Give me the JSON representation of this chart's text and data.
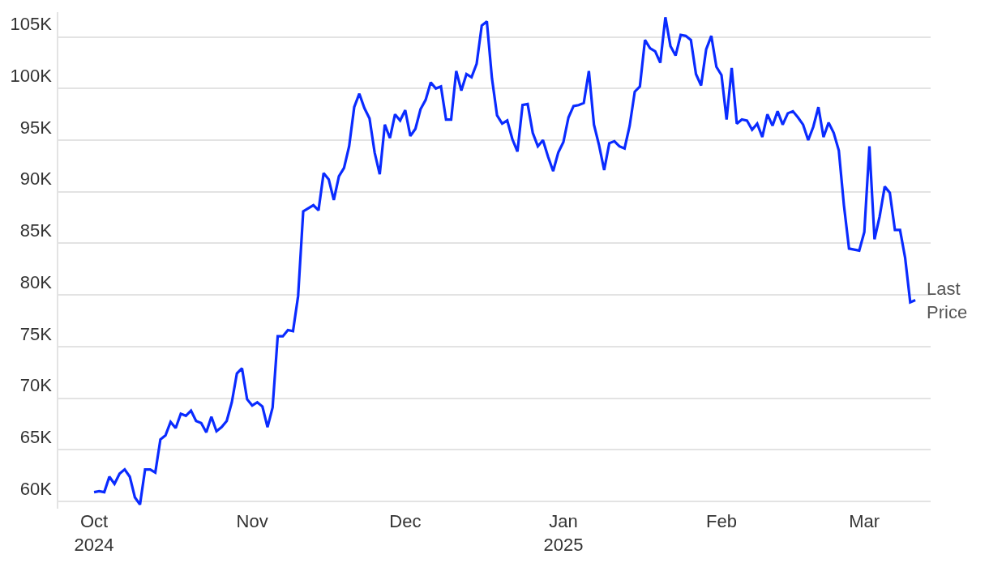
{
  "chart_data": {
    "type": "line",
    "x": [
      "2024-10-01",
      "2024-10-02",
      "2024-10-03",
      "2024-10-04",
      "2024-10-05",
      "2024-10-06",
      "2024-10-07",
      "2024-10-08",
      "2024-10-09",
      "2024-10-10",
      "2024-10-11",
      "2024-10-12",
      "2024-10-13",
      "2024-10-14",
      "2024-10-15",
      "2024-10-16",
      "2024-10-17",
      "2024-10-18",
      "2024-10-19",
      "2024-10-20",
      "2024-10-21",
      "2024-10-22",
      "2024-10-23",
      "2024-10-24",
      "2024-10-25",
      "2024-10-26",
      "2024-10-27",
      "2024-10-28",
      "2024-10-29",
      "2024-10-30",
      "2024-10-31",
      "2024-11-01",
      "2024-11-02",
      "2024-11-03",
      "2024-11-04",
      "2024-11-05",
      "2024-11-06",
      "2024-11-07",
      "2024-11-08",
      "2024-11-09",
      "2024-11-10",
      "2024-11-11",
      "2024-11-12",
      "2024-11-13",
      "2024-11-14",
      "2024-11-15",
      "2024-11-16",
      "2024-11-17",
      "2024-11-18",
      "2024-11-19",
      "2024-11-20",
      "2024-11-21",
      "2024-11-22",
      "2024-11-23",
      "2024-11-24",
      "2024-11-25",
      "2024-11-26",
      "2024-11-27",
      "2024-11-28",
      "2024-11-29",
      "2024-11-30",
      "2024-12-01",
      "2024-12-02",
      "2024-12-03",
      "2024-12-04",
      "2024-12-05",
      "2024-12-06",
      "2024-12-07",
      "2024-12-08",
      "2024-12-09",
      "2024-12-10",
      "2024-12-11",
      "2024-12-12",
      "2024-12-13",
      "2024-12-14",
      "2024-12-15",
      "2024-12-16",
      "2024-12-17",
      "2024-12-18",
      "2024-12-19",
      "2024-12-20",
      "2024-12-21",
      "2024-12-22",
      "2024-12-23",
      "2024-12-24",
      "2024-12-25",
      "2024-12-26",
      "2024-12-27",
      "2024-12-28",
      "2024-12-29",
      "2024-12-30",
      "2024-12-31",
      "2025-01-01",
      "2025-01-02",
      "2025-01-03",
      "2025-01-04",
      "2025-01-05",
      "2025-01-06",
      "2025-01-07",
      "2025-01-08",
      "2025-01-09",
      "2025-01-10",
      "2025-01-11",
      "2025-01-12",
      "2025-01-13",
      "2025-01-14",
      "2025-01-15",
      "2025-01-16",
      "2025-01-17",
      "2025-01-18",
      "2025-01-19",
      "2025-01-20",
      "2025-01-21",
      "2025-01-22",
      "2025-01-23",
      "2025-01-24",
      "2025-01-25",
      "2025-01-26",
      "2025-01-27",
      "2025-01-28",
      "2025-01-29",
      "2025-01-30",
      "2025-01-31",
      "2025-02-01",
      "2025-02-02",
      "2025-02-03",
      "2025-02-04",
      "2025-02-05",
      "2025-02-06",
      "2025-02-07",
      "2025-02-08",
      "2025-02-09",
      "2025-02-10",
      "2025-02-11",
      "2025-02-12",
      "2025-02-13",
      "2025-02-14",
      "2025-02-15",
      "2025-02-16",
      "2025-02-17",
      "2025-02-18",
      "2025-02-19",
      "2025-02-20",
      "2025-02-21",
      "2025-02-22",
      "2025-02-23",
      "2025-02-24",
      "2025-02-25",
      "2025-02-26",
      "2025-02-27",
      "2025-02-28",
      "2025-03-01",
      "2025-03-02",
      "2025-03-03",
      "2025-03-04",
      "2025-03-05",
      "2025-03-06",
      "2025-03-07",
      "2025-03-08",
      "2025-03-09",
      "2025-03-10",
      "2025-03-11"
    ],
    "series": [
      {
        "color": "#0a2bff",
        "values": [
          60900,
          61000,
          60900,
          62400,
          61700,
          62700,
          63100,
          62400,
          60400,
          59700,
          63100,
          63100,
          62800,
          66000,
          66400,
          67700,
          67100,
          68500,
          68300,
          68800,
          67800,
          67600,
          66700,
          68200,
          66800,
          67200,
          67800,
          69600,
          72400,
          72900,
          69900,
          69300,
          69600,
          69200,
          67200,
          69100,
          76000,
          76000,
          76600,
          76500,
          79900,
          88100,
          88400,
          88700,
          88200,
          91800,
          91200,
          89200,
          91500,
          92300,
          94400,
          98200,
          99500,
          98100,
          97100,
          93800,
          91700,
          96500,
          95200,
          97500,
          96900,
          97900,
          95400,
          96100,
          98000,
          98900,
          100600,
          100000,
          100200,
          97000,
          97000,
          101700,
          99800,
          101400,
          101100,
          102400,
          106100,
          106500,
          101000,
          97400,
          96600,
          96900,
          95100,
          93900,
          98400,
          98500,
          95700,
          94400,
          95000,
          93400,
          92000,
          93800,
          94800,
          97200,
          98300,
          98400,
          98600,
          101700,
          96500,
          94500,
          92100,
          94700,
          94900,
          94400,
          94200,
          96400,
          99700,
          100200,
          104700,
          103900,
          103600,
          102500,
          106900,
          104100,
          103200,
          105200,
          105100,
          104700,
          101400,
          100300,
          103800,
          105100,
          102100,
          101300,
          97000,
          102000,
          96600,
          97000,
          96900,
          96000,
          96600,
          95300,
          97500,
          96400,
          97800,
          96500,
          97600,
          97800,
          97200,
          96500,
          95000,
          96300,
          98200,
          95300,
          96700,
          95700,
          94000,
          88700,
          84500,
          84400,
          84300,
          86100,
          94400,
          85400,
          87600,
          90500,
          89900,
          86300,
          86300,
          83600,
          79300,
          79500
        ]
      }
    ],
    "xlim": [
      "2024-09-24",
      "2025-03-14"
    ],
    "xticks": [
      {
        "value": "2024-10-01",
        "label": "Oct 2024"
      },
      {
        "value": "2024-11-01",
        "label": "Nov"
      },
      {
        "value": "2024-12-01",
        "label": "Dec"
      },
      {
        "value": "2025-01-01",
        "label": "Jan 2025"
      },
      {
        "value": "2025-02-01",
        "label": "Feb"
      },
      {
        "value": "2025-03-01",
        "label": "Mar"
      }
    ],
    "ylim": [
      59300,
      107400
    ],
    "yticks": [
      {
        "value": 60000,
        "label": "60K"
      },
      {
        "value": 65000,
        "label": "65K"
      },
      {
        "value": 70000,
        "label": "70K"
      },
      {
        "value": 75000,
        "label": "75K"
      },
      {
        "value": 80000,
        "label": "80K"
      },
      {
        "value": 85000,
        "label": "85K"
      },
      {
        "value": 90000,
        "label": "90K"
      },
      {
        "value": 95000,
        "label": "95K"
      },
      {
        "value": 100000,
        "label": "100K"
      },
      {
        "value": 105000,
        "label": "105K"
      }
    ],
    "grid": "y",
    "marker": "none",
    "line_style": "solid",
    "annotations": [
      {
        "text": "Last Price",
        "x": "2025-03-11",
        "y": 79500
      }
    ]
  }
}
